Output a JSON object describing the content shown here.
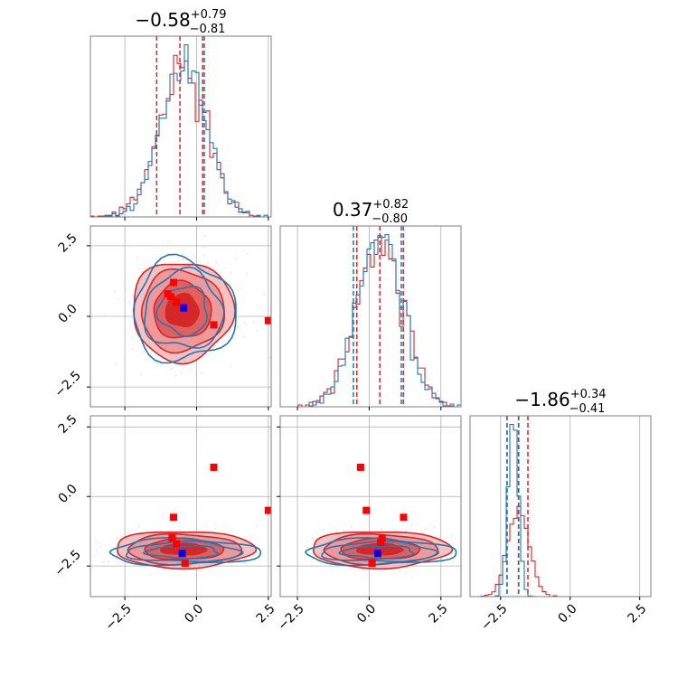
{
  "colors": {
    "red": "#d62728",
    "blue": "#1f77b4",
    "marker_red": "#ff0000",
    "marker_blue": "#0000ff"
  },
  "chart_data": [
    {
      "type": "histogram",
      "panel": "row1-col1",
      "title": {
        "value": "−0.58",
        "upper": "+0.79",
        "lower": "−0.81"
      },
      "xlim": [
        -3.7,
        2.6
      ],
      "xticks": [
        -2.5,
        0.0,
        2.5
      ],
      "series": [
        {
          "color": "#d62728",
          "mean": -0.5,
          "sd": 0.82,
          "quantiles": [
            -1.39,
            -0.58,
            0.21
          ]
        },
        {
          "color": "#1f77b4",
          "mean": -0.45,
          "sd": 0.8,
          "quantiles": [
            0.27
          ]
        }
      ]
    },
    {
      "type": "scatter",
      "panel": "row2-col1",
      "xlim": [
        -3.7,
        2.6
      ],
      "ylim": [
        -3.2,
        3.2
      ],
      "xticks": [
        -2.5,
        0.0,
        2.5
      ],
      "yticks": [
        -2.5,
        0.0,
        2.5
      ],
      "ytick_labels": [
        "−2.5",
        "0.0",
        "2.5"
      ],
      "contours": {
        "red": {
          "cx": -0.5,
          "cy": 0.2,
          "sx": 0.8,
          "sy": 0.8
        },
        "blue": {
          "cx": -0.45,
          "cy": 0.2,
          "sx": 0.85,
          "sy": 0.85
        }
      },
      "red_markers": [
        [
          -0.8,
          1.2
        ],
        [
          -0.9,
          0.7
        ],
        [
          -1.0,
          0.8
        ],
        [
          -0.7,
          0.5
        ],
        [
          0.6,
          -0.3
        ],
        [
          2.5,
          -0.15
        ]
      ],
      "blue_markers": [
        [
          -0.45,
          0.3
        ]
      ]
    },
    {
      "type": "histogram",
      "panel": "row2-col2",
      "title": {
        "value": "0.37",
        "upper": "+0.82",
        "lower": "−0.80"
      },
      "xlim": [
        -3.1,
        3.2
      ],
      "xticks": [
        -2.5,
        0.0,
        2.5
      ],
      "series": [
        {
          "color": "#d62728",
          "mean": 0.37,
          "sd": 0.82,
          "quantiles": [
            -0.43,
            0.37,
            1.19
          ]
        },
        {
          "color": "#1f77b4",
          "mean": 0.35,
          "sd": 0.78,
          "quantiles": [
            -0.55,
            1.12
          ]
        }
      ]
    },
    {
      "type": "scatter",
      "panel": "row3-col1",
      "xlim": [
        -3.7,
        2.6
      ],
      "ylim": [
        -3.6,
        2.9
      ],
      "xticks": [
        -2.5,
        0.0,
        2.5
      ],
      "xtick_labels": [
        "−2.5",
        "0.0",
        "2.5"
      ],
      "yticks": [
        -2.5,
        0.0,
        2.5
      ],
      "ytick_labels": [
        "−2.5",
        "0.0",
        "2.5"
      ],
      "contours": {
        "red": {
          "cx": -0.45,
          "cy": -1.9,
          "sx": 1.1,
          "sy": 0.3
        },
        "blue": {
          "cx": -0.45,
          "cy": -2.0,
          "sx": 1.25,
          "sy": 0.22
        }
      },
      "red_markers": [
        [
          0.6,
          1.05
        ],
        [
          -0.8,
          -0.75
        ],
        [
          -0.85,
          -1.5
        ],
        [
          -0.7,
          -1.7
        ],
        [
          -0.4,
          -2.4
        ],
        [
          2.5,
          -0.5
        ]
      ],
      "blue_markers": [
        [
          -0.5,
          -2.05
        ]
      ]
    },
    {
      "type": "scatter",
      "panel": "row3-col2",
      "xlim": [
        -3.1,
        3.2
      ],
      "ylim": [
        -3.6,
        2.9
      ],
      "xticks": [
        -2.5,
        0.0,
        2.5
      ],
      "xtick_labels": [
        "−2.5",
        "0.0",
        "2.5"
      ],
      "yticks": [
        -2.5,
        0.0,
        2.5
      ],
      "contours": {
        "red": {
          "cx": 0.37,
          "cy": -1.9,
          "sx": 1.1,
          "sy": 0.3
        },
        "blue": {
          "cx": 0.35,
          "cy": -2.0,
          "sx": 1.25,
          "sy": 0.22
        }
      },
      "red_markers": [
        [
          -0.3,
          1.05
        ],
        [
          -0.1,
          -0.5
        ],
        [
          1.2,
          -0.75
        ],
        [
          0.45,
          -1.5
        ],
        [
          0.4,
          -1.65
        ],
        [
          0.1,
          -2.4
        ]
      ],
      "blue_markers": [
        [
          0.3,
          -2.05
        ]
      ]
    },
    {
      "type": "histogram",
      "panel": "row3-col3",
      "title": {
        "value": "−1.86",
        "upper": "+0.34",
        "lower": "−0.41"
      },
      "xlim": [
        -3.6,
        2.9
      ],
      "xticks": [
        -2.5,
        0.0,
        2.5
      ],
      "xtick_labels": [
        "−2.5",
        "0.0",
        "2.5"
      ],
      "series": [
        {
          "color": "#d62728",
          "mean": -1.86,
          "sd": 0.38,
          "quantiles": [
            -2.27,
            -1.86,
            -1.52
          ]
        },
        {
          "color": "#1f77b4",
          "mean": -2.05,
          "sd": 0.18,
          "quantiles": [
            -2.27,
            -1.85
          ]
        }
      ]
    }
  ]
}
